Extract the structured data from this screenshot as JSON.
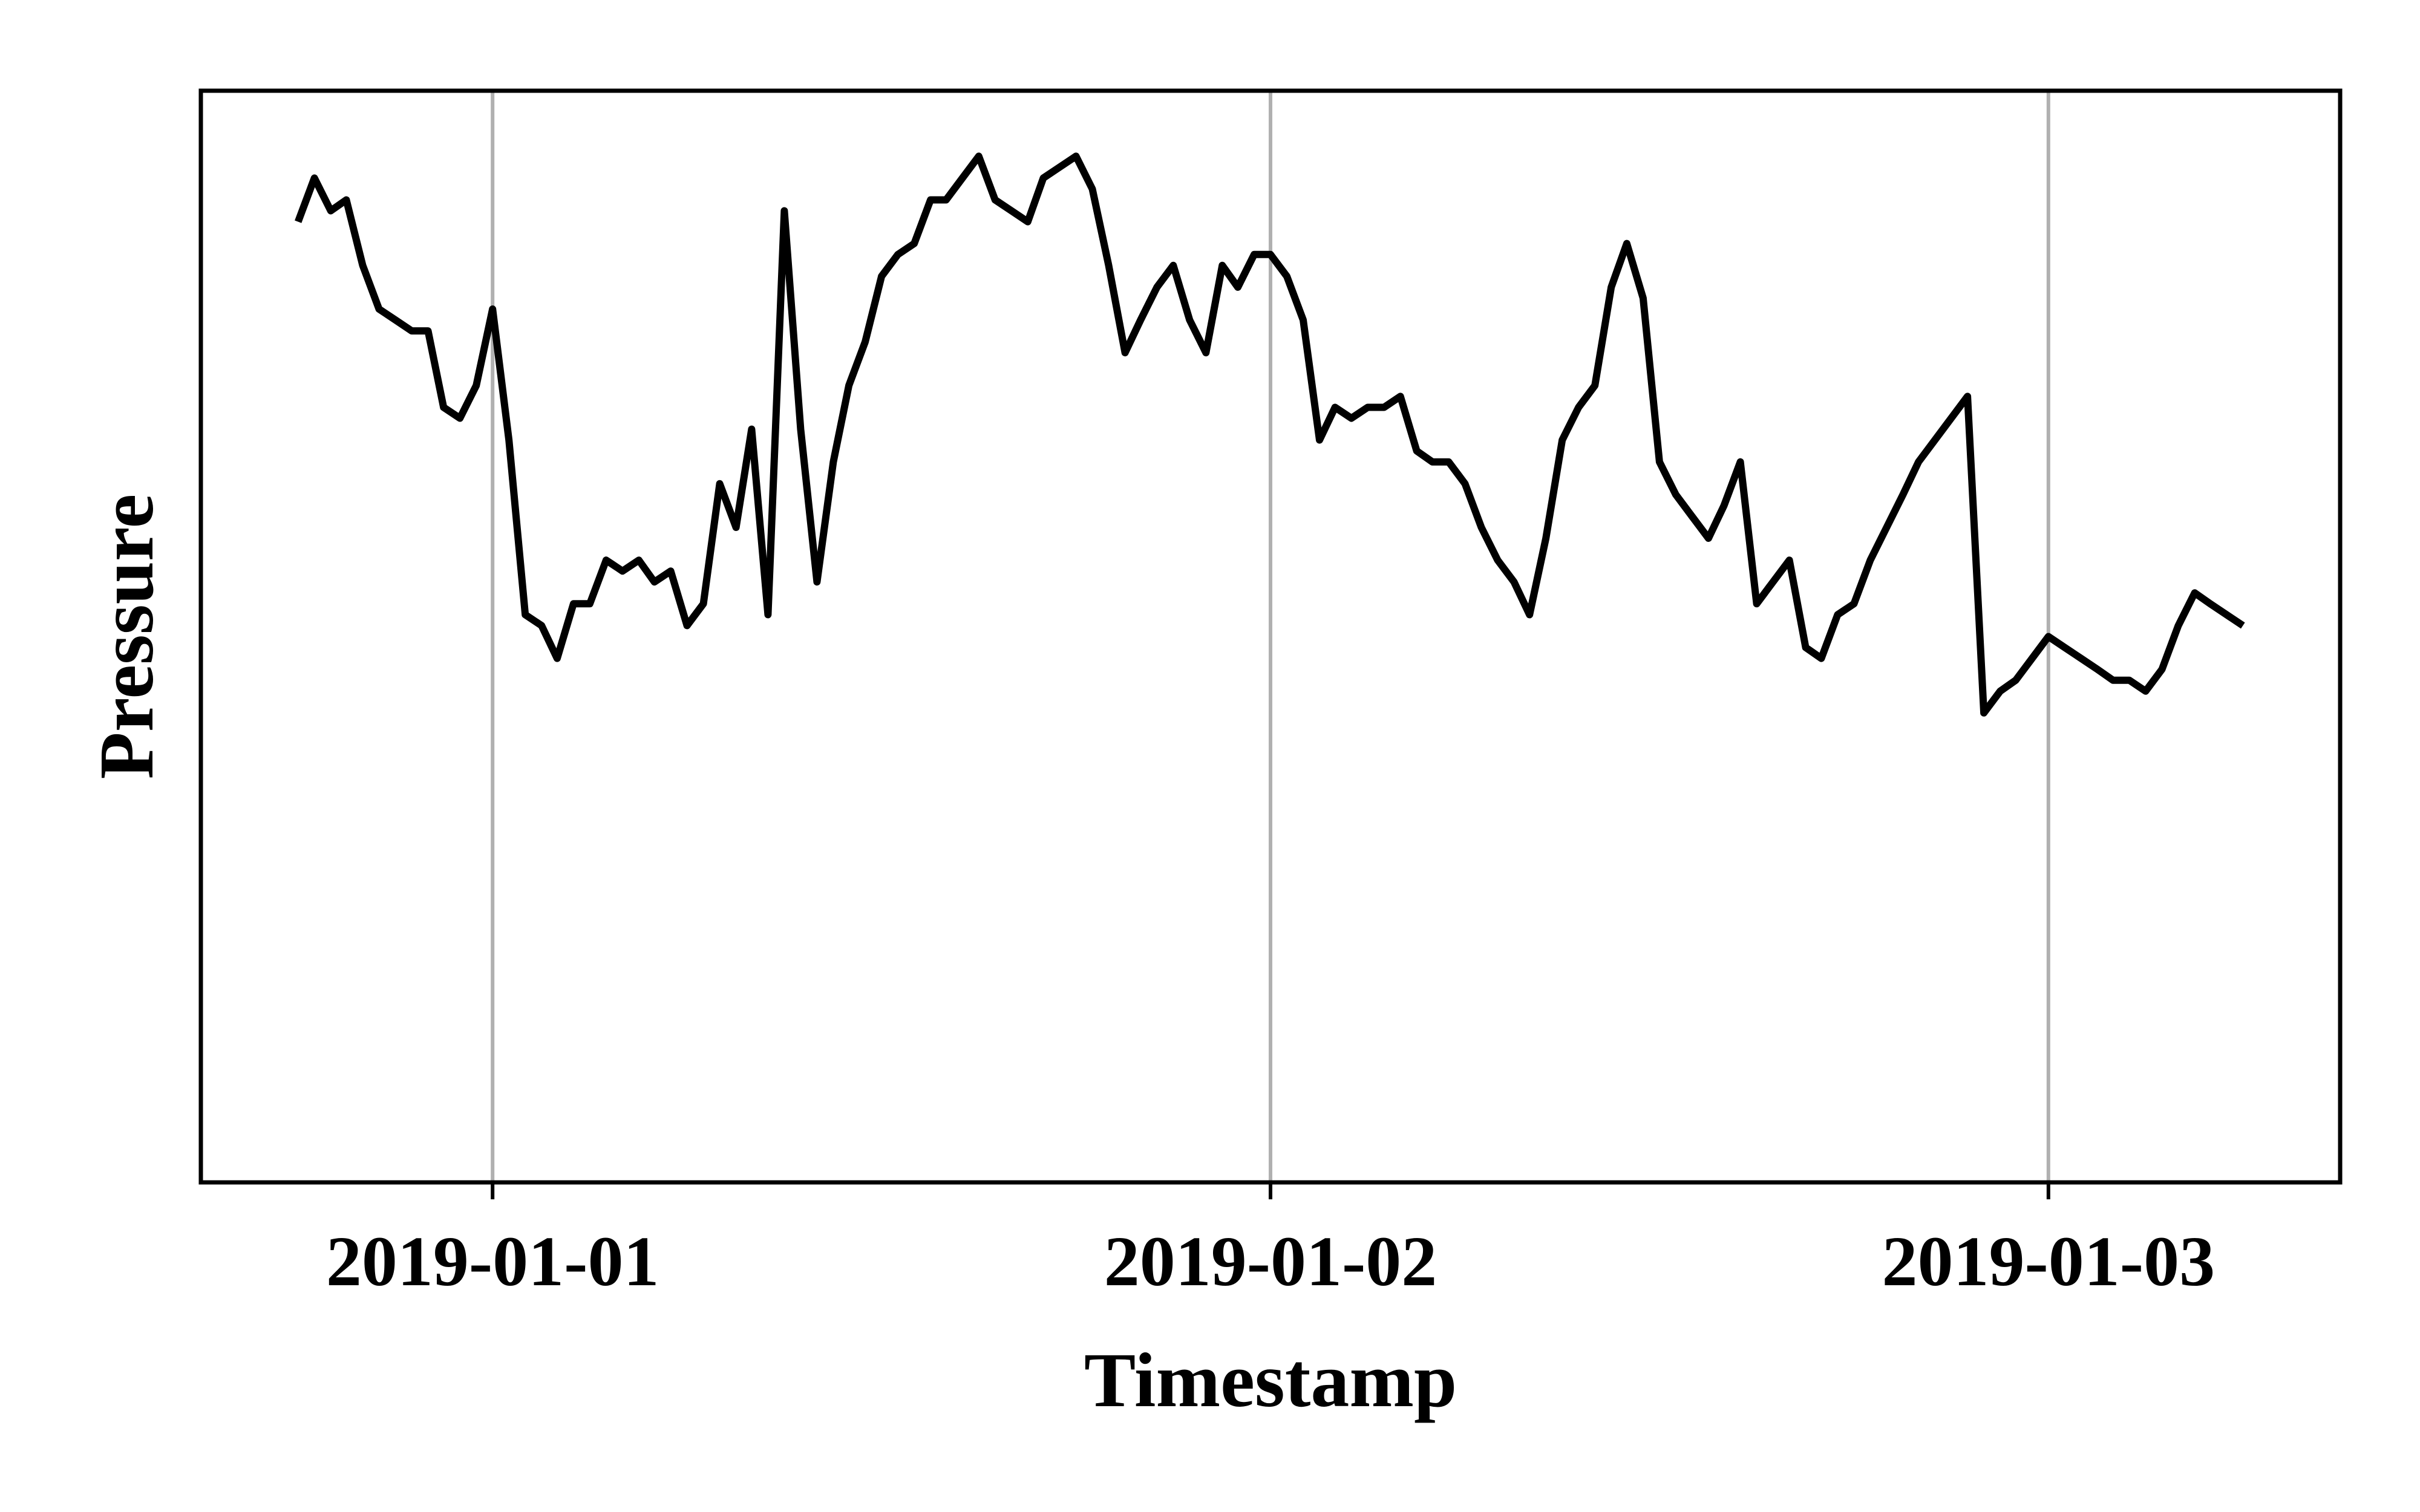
{
  "chart_data": {
    "type": "line",
    "title": "",
    "xlabel": "Timestamp",
    "ylabel": "Pressure",
    "x_tick_labels": [
      "2019-01-01",
      "2019-01-02",
      "2019-01-03"
    ],
    "x_ticks_days": [
      0,
      1,
      2
    ],
    "xlim_days": [
      -0.375,
      2.375
    ],
    "ylim": [
      0,
      1
    ],
    "y_ticks_shown": false,
    "grid": "vertical lines at x ticks",
    "legend": "none",
    "line_color": "#000000",
    "grid_color": "#b0b0b0",
    "series": [
      {
        "style": "solid",
        "x_days": [
          -0.25,
          -0.229,
          -0.208,
          -0.188,
          -0.167,
          -0.146,
          -0.125,
          -0.104,
          -0.083,
          -0.063,
          -0.042,
          -0.021,
          0.0,
          0.021,
          0.042,
          0.063,
          0.083,
          0.104,
          0.125,
          0.146,
          0.167,
          0.188,
          0.208,
          0.229,
          0.25,
          0.271,
          0.292,
          0.313,
          0.333,
          0.354,
          0.375,
          0.396,
          0.417,
          0.438,
          0.458,
          0.479,
          0.5,
          0.521,
          0.542,
          0.563,
          0.583,
          0.604,
          0.625,
          0.646,
          0.667,
          0.688,
          0.708,
          0.729,
          0.75,
          0.771,
          0.792,
          0.813,
          0.833,
          0.854,
          0.875,
          0.896,
          0.917,
          0.938,
          0.958,
          0.979,
          1.0,
          1.021,
          1.042,
          1.063,
          1.083,
          1.104,
          1.125,
          1.146,
          1.167,
          1.188,
          1.208,
          1.229,
          1.25,
          1.271,
          1.292,
          1.313,
          1.333,
          1.354,
          1.375,
          1.396,
          1.417,
          1.438,
          1.458,
          1.479,
          1.5,
          1.521,
          1.542,
          1.563,
          1.583,
          1.604,
          1.625,
          1.646,
          1.667,
          1.688,
          1.708,
          1.729,
          1.75,
          1.771,
          1.792,
          1.813,
          1.833,
          1.854,
          1.875,
          1.896,
          1.917,
          1.938,
          1.958,
          1.979,
          2.0,
          2.021,
          2.042,
          2.063,
          2.083,
          2.104,
          2.125,
          2.146,
          2.167,
          2.188,
          2.208,
          2.229,
          2.25
        ],
        "values": [
          0.88,
          0.92,
          0.89,
          0.9,
          0.84,
          0.8,
          0.79,
          0.78,
          0.78,
          0.71,
          0.7,
          0.73,
          0.8,
          0.68,
          0.52,
          0.51,
          0.48,
          0.53,
          0.53,
          0.57,
          0.56,
          0.57,
          0.55,
          0.56,
          0.51,
          0.53,
          0.64,
          0.6,
          0.69,
          0.52,
          0.89,
          0.69,
          0.55,
          0.66,
          0.73,
          0.77,
          0.83,
          0.85,
          0.86,
          0.9,
          0.9,
          0.92,
          0.94,
          0.9,
          0.89,
          0.88,
          0.92,
          0.93,
          0.94,
          0.91,
          0.84,
          0.76,
          0.79,
          0.82,
          0.84,
          0.79,
          0.76,
          0.84,
          0.82,
          0.85,
          0.85,
          0.83,
          0.79,
          0.68,
          0.71,
          0.7,
          0.71,
          0.71,
          0.72,
          0.67,
          0.66,
          0.66,
          0.64,
          0.6,
          0.57,
          0.55,
          0.52,
          0.59,
          0.68,
          0.71,
          0.73,
          0.82,
          0.86,
          0.81,
          0.66,
          0.63,
          0.61,
          0.59,
          0.62,
          0.66,
          0.53,
          0.55,
          0.57,
          0.49,
          0.48,
          0.52,
          0.53,
          0.57,
          0.6,
          0.63,
          0.66,
          0.68,
          0.7,
          0.72,
          0.43,
          0.45,
          0.46,
          0.48,
          0.5,
          0.49,
          0.48,
          0.47,
          0.46,
          0.46,
          0.45,
          0.47,
          0.51,
          0.54,
          0.53,
          0.52,
          0.51
        ],
        "values_note": "series values on a 0-1 scale (y axis unlabeled)"
      }
    ]
  }
}
